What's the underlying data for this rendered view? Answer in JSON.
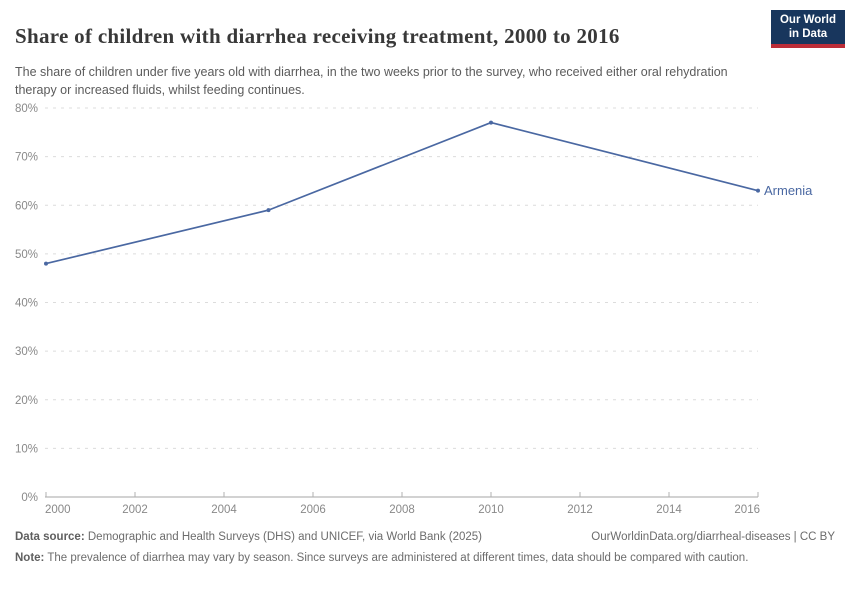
{
  "header": {
    "title": "Share of children with diarrhea receiving treatment, 2000 to 2016",
    "subtitle": "The share of children under five years old with diarrhea, in the two weeks prior to the survey, who received either oral rehydration therapy or increased fluids, whilst feeding continues.",
    "logo": {
      "line1": "Our World",
      "line2": "in Data",
      "bg_color": "#18365d",
      "stripe_color": "#bc2d38"
    }
  },
  "chart_data": {
    "type": "line",
    "title": "Share of children with diarrhea receiving treatment, 2000 to 2016",
    "xlabel": "",
    "ylabel": "",
    "xlim": [
      2000,
      2016
    ],
    "ylim": [
      0,
      80
    ],
    "xticks": [
      2000,
      2002,
      2004,
      2006,
      2008,
      2010,
      2012,
      2014,
      2016
    ],
    "yticks": [
      0,
      10,
      20,
      30,
      40,
      50,
      60,
      70,
      80
    ],
    "ytick_suffix": "%",
    "grid": true,
    "legend_position": "end-of-line-label",
    "series": [
      {
        "name": "Armenia",
        "color": "#4a68a2",
        "points": [
          {
            "x": 2000,
            "y": 48
          },
          {
            "x": 2005,
            "y": 59
          },
          {
            "x": 2010,
            "y": 77
          },
          {
            "x": 2016,
            "y": 63
          }
        ]
      }
    ],
    "style": {
      "gridline_color": "#dcdcdc",
      "axis_color": "#a5a5a5",
      "tick_color": "#b0b0b0",
      "tick_label_color": "#898989"
    }
  },
  "footer": {
    "datasource_label": "Data source:",
    "datasource_text": " Demographic and Health Surveys (DHS) and UNICEF, via World Bank (2025)",
    "link_text": "OurWorldinData.org/diarrheal-diseases | CC BY",
    "note_label": "Note:",
    "note_text": " The prevalence of diarrhea may vary by season. Since surveys are administered at different times, data should be compared with caution."
  }
}
